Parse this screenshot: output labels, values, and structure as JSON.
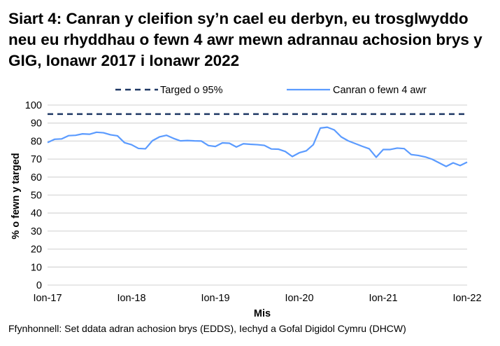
{
  "chart_data": {
    "type": "line",
    "title": "Siart 4: Canran y cleifion sy’n cael eu derbyn, eu trosglwyddo neu eu rhyddhau o fewn 4 awr mewn adrannau achosion brys y GIG, Ionawr 2017 i Ionawr 2022",
    "xlabel": "Mis",
    "ylabel": "% o fewn y targed",
    "ylim": [
      0,
      100
    ],
    "yticks": [
      0,
      10,
      20,
      30,
      40,
      50,
      60,
      70,
      80,
      90,
      100
    ],
    "xtick_labels": [
      "Ion-17",
      "Ion-18",
      "Ion-19",
      "Ion-20",
      "Ion-21",
      "Ion-22"
    ],
    "x_range": [
      "Ion-17",
      "Ion-22"
    ],
    "grid": true,
    "legend_position": "top",
    "series": [
      {
        "name": "Targed o 95%",
        "style": "dashed",
        "color": "#1f3864",
        "values": [
          95
        ]
      },
      {
        "name": "Canran o fewn 4 awr",
        "style": "solid",
        "color": "#5b9bff",
        "values": [
          79.2,
          81,
          81.2,
          83,
          83.2,
          84,
          83.8,
          84.9,
          84.6,
          83.5,
          82.9,
          79.1,
          78,
          75.9,
          75.7,
          80.2,
          82.3,
          83.2,
          81.5,
          80.1,
          80.3,
          80.1,
          80,
          77.5,
          77,
          79,
          78.8,
          76.7,
          78.5,
          78.2,
          78,
          77.6,
          75.6,
          75.5,
          74.2,
          71.4,
          73.5,
          74.6,
          78,
          87.2,
          87.7,
          86.2,
          82.3,
          80.1,
          78.6,
          77.1,
          75.7,
          71,
          75.3,
          75.3,
          76.1,
          75.8,
          72.5,
          72,
          71.2,
          69.9,
          67.9,
          65.9,
          67.9,
          66.4,
          68.3
        ]
      }
    ],
    "source": "Ffynhonnell: Set ddata adran achosion brys (EDDS), Iechyd a Gofal Digidol Cymru (DHCW)"
  }
}
